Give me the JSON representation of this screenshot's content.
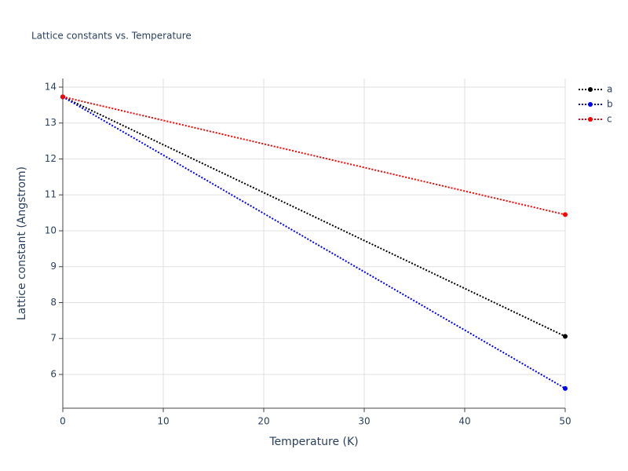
{
  "chart_data": {
    "type": "line",
    "title": "Lattice constants vs. Temperature",
    "x_label": "Temperature (K)",
    "y_label": "Lattice constant (Angstrom)",
    "x": [
      0,
      50
    ],
    "series": [
      {
        "name": "a",
        "color": "#000000",
        "values": [
          13.73,
          7.06
        ]
      },
      {
        "name": "b",
        "color": "#0000ff",
        "values": [
          13.73,
          5.61
        ]
      },
      {
        "name": "c",
        "color": "#ff0000",
        "values": [
          13.73,
          10.45
        ]
      }
    ],
    "xlim": [
      0,
      50
    ],
    "xticks": [
      0,
      10,
      20,
      30,
      40,
      50
    ],
    "ylim": [
      5.06,
      14.24
    ],
    "yticks": [
      6,
      7,
      8,
      9,
      10,
      11,
      12,
      13,
      14
    ],
    "grid": true,
    "legend": "top-right"
  }
}
